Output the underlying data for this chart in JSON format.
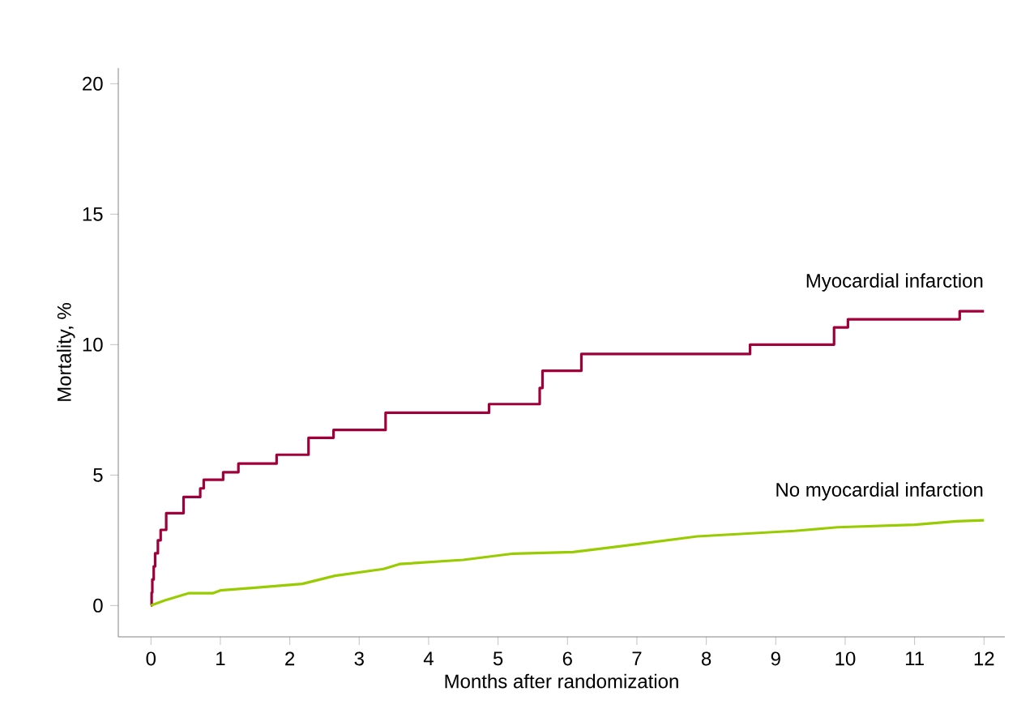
{
  "chart_data": {
    "type": "step",
    "xlabel": "Months after randomization",
    "ylabel": "Mortality, %",
    "xlim": [
      -0.47,
      12.3
    ],
    "ylim": [
      -1.2,
      20.6
    ],
    "xticks": [
      0,
      1,
      2,
      3,
      4,
      5,
      6,
      7,
      8,
      9,
      10,
      11,
      12
    ],
    "yticks": [
      0,
      5,
      10,
      15,
      20
    ],
    "grid": false,
    "legend": false,
    "marker": "none",
    "line_style": "solid",
    "series": [
      {
        "name": "Myocardial infarction",
        "color": "#a0003a",
        "x": [
          0,
          0.01,
          0.02,
          0.04,
          0.06,
          0.1,
          0.14,
          0.22,
          0.47,
          0.71,
          0.76,
          1.04,
          1.26,
          1.81,
          2.27,
          2.63,
          3.38,
          4.87,
          5.6,
          5.64,
          6.2,
          8.63,
          9.84,
          10.04,
          11.65,
          12
        ],
        "values": [
          0,
          0.5,
          1.0,
          1.5,
          2.0,
          2.5,
          2.9,
          3.54,
          4.16,
          4.49,
          4.82,
          5.11,
          5.44,
          5.78,
          6.43,
          6.73,
          7.39,
          7.72,
          8.34,
          9.0,
          9.64,
          10.0,
          10.66,
          10.97,
          11.28,
          11.28
        ]
      },
      {
        "name": "No myocardial infarction",
        "color": "#99cc00",
        "type": "line",
        "x": [
          0,
          0.2,
          0.54,
          0.89,
          1.0,
          1.5,
          2.18,
          2.65,
          3.35,
          3.58,
          4.5,
          5.22,
          6.08,
          7.0,
          7.87,
          9.27,
          9.89,
          11.0,
          11.6,
          12
        ],
        "values": [
          0,
          0.2,
          0.47,
          0.47,
          0.58,
          0.68,
          0.83,
          1.14,
          1.4,
          1.59,
          1.75,
          1.99,
          2.05,
          2.35,
          2.65,
          2.86,
          3.0,
          3.1,
          3.23,
          3.27
        ]
      }
    ]
  }
}
